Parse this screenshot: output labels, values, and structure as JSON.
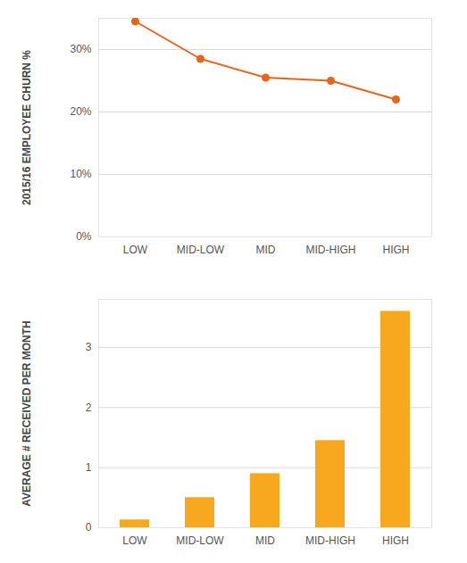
{
  "chart_data": [
    {
      "type": "line",
      "categories": [
        "LOW",
        "MID-LOW",
        "MID",
        "MID-HIGH",
        "HIGH"
      ],
      "values": [
        34.5,
        28.5,
        25.5,
        25,
        22
      ],
      "color": "#e8641b",
      "marker": "circle",
      "ylabel": "2015/16 EMPLOYEE CHURN %",
      "ylim": [
        0,
        35
      ],
      "yticks": [
        {
          "value": 0,
          "label": "0%"
        },
        {
          "value": 10,
          "label": "10%"
        },
        {
          "value": 20,
          "label": "20%"
        },
        {
          "value": 30,
          "label": "30%"
        }
      ],
      "grid": true
    },
    {
      "type": "bar",
      "categories": [
        "LOW",
        "MID-LOW",
        "MID",
        "MID-HIGH",
        "HIGH"
      ],
      "values": [
        0.13,
        0.5,
        0.9,
        1.45,
        3.6
      ],
      "color": "#f8a81c",
      "ylabel": "AVERAGE # RECEIVED PER MONTH",
      "ylim": [
        0,
        3.8
      ],
      "yticks": [
        0,
        1,
        2,
        3
      ],
      "grid": true
    }
  ]
}
